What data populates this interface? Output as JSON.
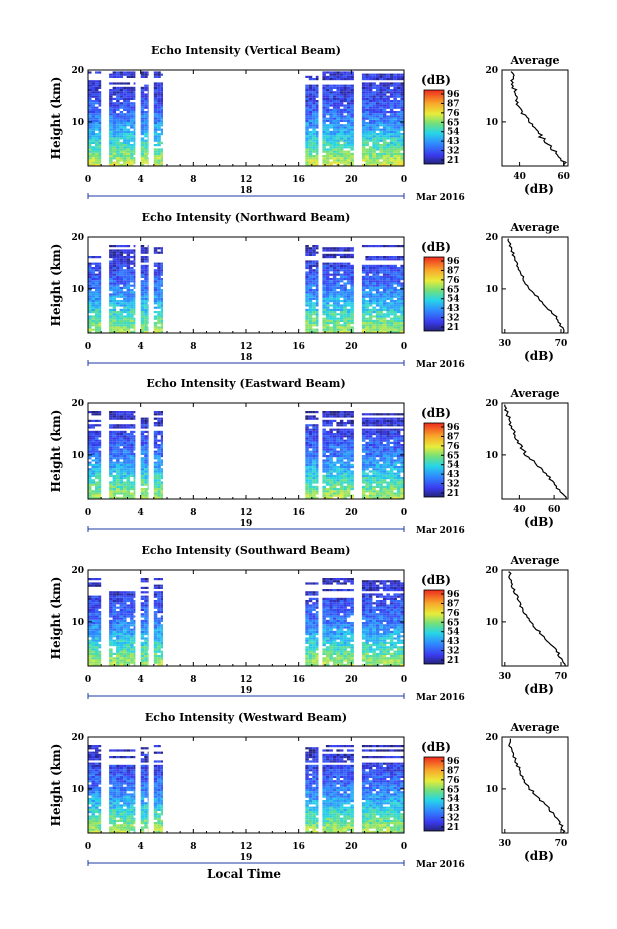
{
  "x_label": "Local Time",
  "colorbar_unit": "(dB)",
  "colorbar_ticks": [
    "96",
    "87",
    "76",
    "65",
    "54",
    "43",
    "32",
    "21"
  ],
  "panels": [
    {
      "title": "Echo Intensity (Vertical Beam)",
      "ylabel": "Height (km)",
      "yticks": [
        "20",
        "10"
      ],
      "xticks": [
        "0",
        "4",
        "8",
        "12",
        "16",
        "20",
        "0"
      ],
      "date_day": "18",
      "date_month": "Mar 2016",
      "avg_title": "Average",
      "avg_xlabel": "(dB)",
      "avg_xticks": [
        "40",
        "60"
      ],
      "avg_yticks": [
        "20",
        "10"
      ]
    },
    {
      "title": "Echo Intensity (Northward Beam)",
      "ylabel": "Height (km)",
      "yticks": [
        "20",
        "10"
      ],
      "xticks": [
        "0",
        "4",
        "8",
        "12",
        "16",
        "20",
        "0"
      ],
      "date_day": "18",
      "date_month": "Mar 2016",
      "avg_title": "Average",
      "avg_xlabel": "(dB)",
      "avg_xticks": [
        "30",
        "70"
      ],
      "avg_yticks": [
        "20",
        "10"
      ]
    },
    {
      "title": "Echo Intensity (Eastward Beam)",
      "ylabel": "Height (km)",
      "yticks": [
        "20",
        "10"
      ],
      "xticks": [
        "0",
        "4",
        "8",
        "12",
        "16",
        "20",
        "0"
      ],
      "date_day": "19",
      "date_month": "Mar 2016",
      "avg_title": "Average",
      "avg_xlabel": "(dB)",
      "avg_xticks": [
        "40",
        "60"
      ],
      "avg_yticks": [
        "20",
        "10"
      ]
    },
    {
      "title": "Echo Intensity (Southward Beam)",
      "ylabel": "Height (km)",
      "yticks": [
        "20",
        "10"
      ],
      "xticks": [
        "0",
        "4",
        "8",
        "12",
        "16",
        "20",
        "0"
      ],
      "date_day": "19",
      "date_month": "Mar 2016",
      "avg_title": "Average",
      "avg_xlabel": "(dB)",
      "avg_xticks": [
        "30",
        "70"
      ],
      "avg_yticks": [
        "20",
        "10"
      ]
    },
    {
      "title": "Echo Intensity (Westward Beam)",
      "ylabel": "Height (km)",
      "yticks": [
        "20",
        "10"
      ],
      "xticks": [
        "0",
        "4",
        "8",
        "12",
        "16",
        "20",
        "0"
      ],
      "date_day": "19",
      "date_month": "Mar 2016",
      "avg_title": "Average",
      "avg_xlabel": "(dB)",
      "avg_xticks": [
        "30",
        "70"
      ],
      "avg_yticks": [
        "20",
        "10"
      ]
    }
  ],
  "chart_data": [
    {
      "type": "heatmap",
      "title": "Echo Intensity (Vertical Beam)",
      "xlabel": "Local Time",
      "ylabel": "Height (km)",
      "xlim": [
        0,
        24
      ],
      "ylim": [
        1.5,
        20
      ],
      "colorbar_range_db": [
        21,
        96
      ],
      "data_segments_hours": [
        [
          0,
          1.0
        ],
        [
          1.6,
          3.6
        ],
        [
          4.0,
          4.6
        ],
        [
          5.0,
          5.7
        ],
        [
          16.5,
          17.5
        ],
        [
          17.8,
          20.2
        ],
        [
          20.8,
          24.0
        ]
      ],
      "profile_db_by_height": [
        [
          2,
          70
        ],
        [
          4,
          62
        ],
        [
          6,
          55
        ],
        [
          8,
          48
        ],
        [
          10,
          42
        ],
        [
          12,
          37
        ],
        [
          14,
          33
        ],
        [
          16,
          30
        ],
        [
          18,
          28
        ],
        [
          20,
          27
        ]
      ],
      "avg_profile": {
        "x_label": "(dB)",
        "xlim": [
          32,
          62
        ],
        "height_km": [
          2,
          4,
          6,
          8,
          10,
          12,
          14,
          16,
          18,
          20
        ],
        "db": [
          61,
          57,
          52,
          48,
          44,
          41,
          39,
          38,
          36,
          37
        ]
      }
    },
    {
      "type": "heatmap",
      "title": "Echo Intensity (Northward Beam)",
      "xlabel": "Local Time",
      "ylabel": "Height (km)",
      "xlim": [
        0,
        24
      ],
      "ylim": [
        1.5,
        20
      ],
      "colorbar_range_db": [
        21,
        96
      ],
      "data_segments_hours": [
        [
          0,
          1.0
        ],
        [
          1.6,
          3.6
        ],
        [
          4.0,
          4.6
        ],
        [
          5.0,
          5.7
        ],
        [
          16.5,
          17.5
        ],
        [
          17.8,
          20.2
        ],
        [
          20.8,
          24.0
        ]
      ],
      "profile_db_by_height": [
        [
          2,
          66
        ],
        [
          4,
          60
        ],
        [
          6,
          53
        ],
        [
          8,
          46
        ],
        [
          10,
          40
        ],
        [
          12,
          36
        ],
        [
          14,
          32
        ],
        [
          16,
          29
        ],
        [
          18,
          26
        ]
      ],
      "avg_profile": {
        "x_label": "(dB)",
        "xlim": [
          28,
          75
        ],
        "height_km": [
          2,
          4,
          6,
          8,
          10,
          12,
          14,
          16,
          18,
          20
        ],
        "db": [
          72,
          68,
          62,
          55,
          48,
          43,
          40,
          37,
          34,
          33
        ]
      }
    },
    {
      "type": "heatmap",
      "title": "Echo Intensity (Eastward Beam)",
      "xlabel": "Local Time",
      "ylabel": "Height (km)",
      "xlim": [
        0,
        24
      ],
      "ylim": [
        1.5,
        20
      ],
      "colorbar_range_db": [
        21,
        96
      ],
      "data_segments_hours": [
        [
          0,
          1.0
        ],
        [
          1.6,
          3.6
        ],
        [
          4.0,
          4.6
        ],
        [
          5.0,
          5.7
        ],
        [
          16.5,
          17.5
        ],
        [
          17.8,
          20.2
        ],
        [
          20.8,
          24.0
        ]
      ],
      "profile_db_by_height": [
        [
          2,
          66
        ],
        [
          4,
          60
        ],
        [
          6,
          53
        ],
        [
          8,
          46
        ],
        [
          10,
          40
        ],
        [
          12,
          36
        ],
        [
          14,
          32
        ],
        [
          16,
          29
        ],
        [
          18,
          26
        ]
      ],
      "avg_profile": {
        "x_label": "(dB)",
        "xlim": [
          30,
          68
        ],
        "height_km": [
          2,
          4,
          6,
          8,
          10,
          12,
          14,
          16,
          18,
          20
        ],
        "db": [
          66,
          61,
          56,
          50,
          44,
          40,
          37,
          35,
          33,
          32
        ]
      }
    },
    {
      "type": "heatmap",
      "title": "Echo Intensity (Southward Beam)",
      "xlabel": "Local Time",
      "ylabel": "Height (km)",
      "xlim": [
        0,
        24
      ],
      "ylim": [
        1.5,
        20
      ],
      "colorbar_range_db": [
        21,
        96
      ],
      "data_segments_hours": [
        [
          0,
          1.0
        ],
        [
          1.6,
          3.6
        ],
        [
          4.0,
          4.6
        ],
        [
          5.0,
          5.7
        ],
        [
          16.5,
          17.5
        ],
        [
          17.8,
          20.2
        ],
        [
          20.8,
          24.0
        ]
      ],
      "profile_db_by_height": [
        [
          2,
          66
        ],
        [
          4,
          60
        ],
        [
          6,
          53
        ],
        [
          8,
          46
        ],
        [
          10,
          40
        ],
        [
          12,
          36
        ],
        [
          14,
          32
        ],
        [
          16,
          29
        ],
        [
          18,
          26
        ]
      ],
      "avg_profile": {
        "x_label": "(dB)",
        "xlim": [
          28,
          75
        ],
        "height_km": [
          2,
          4,
          6,
          8,
          10,
          12,
          14,
          16,
          18,
          20
        ],
        "db": [
          72,
          68,
          62,
          55,
          48,
          43,
          40,
          37,
          34,
          33
        ]
      }
    },
    {
      "type": "heatmap",
      "title": "Echo Intensity (Westward Beam)",
      "xlabel": "Local Time",
      "ylabel": "Height (km)",
      "xlim": [
        0,
        24
      ],
      "ylim": [
        1.5,
        20
      ],
      "colorbar_range_db": [
        21,
        96
      ],
      "data_segments_hours": [
        [
          0,
          1.0
        ],
        [
          1.6,
          3.6
        ],
        [
          4.0,
          4.6
        ],
        [
          5.0,
          5.7
        ],
        [
          16.5,
          17.5
        ],
        [
          17.8,
          20.2
        ],
        [
          20.8,
          24.0
        ]
      ],
      "profile_db_by_height": [
        [
          2,
          66
        ],
        [
          4,
          60
        ],
        [
          6,
          53
        ],
        [
          8,
          46
        ],
        [
          10,
          40
        ],
        [
          12,
          36
        ],
        [
          14,
          32
        ],
        [
          16,
          29
        ],
        [
          18,
          26
        ]
      ],
      "avg_profile": {
        "x_label": "(dB)",
        "xlim": [
          28,
          75
        ],
        "height_km": [
          2,
          4,
          6,
          8,
          10,
          12,
          14,
          16,
          18,
          20
        ],
        "db": [
          72,
          68,
          62,
          55,
          48,
          43,
          40,
          37,
          34,
          33
        ]
      }
    }
  ]
}
